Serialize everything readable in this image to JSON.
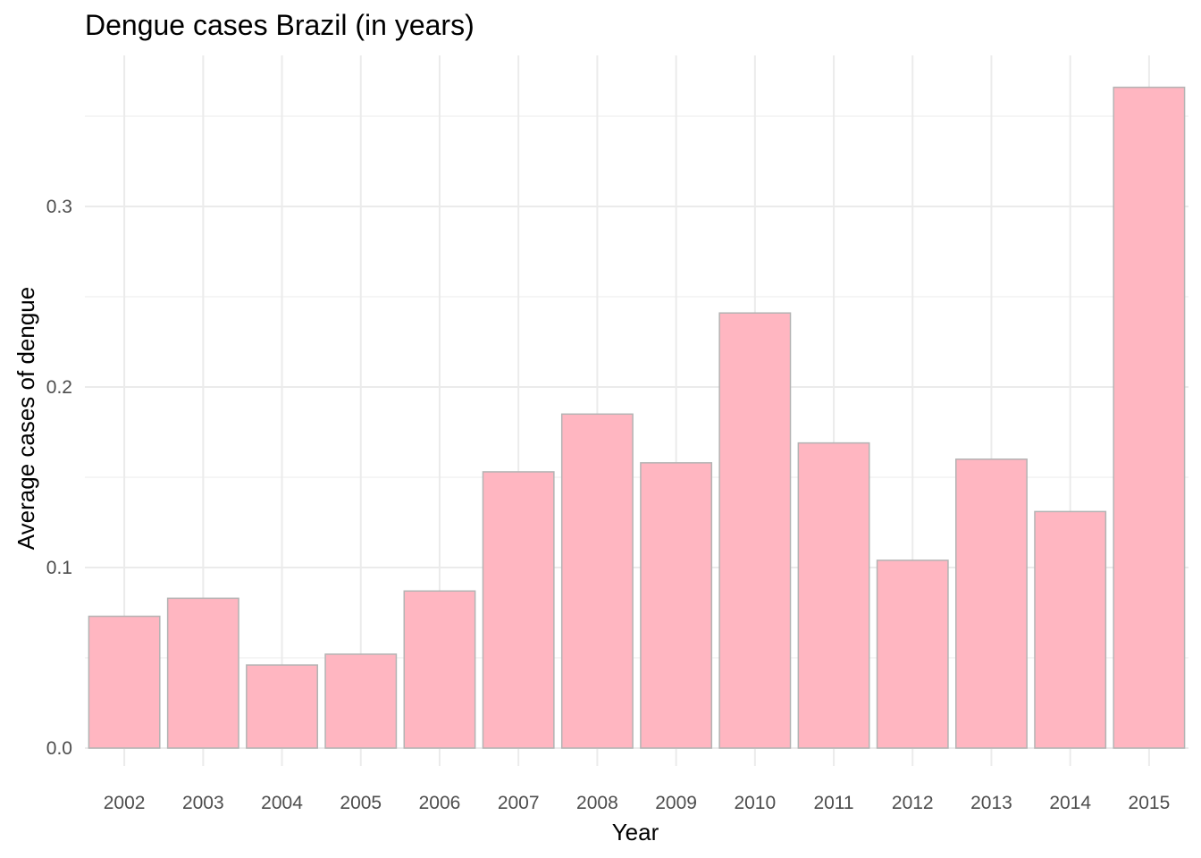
{
  "chart_data": {
    "type": "bar",
    "title": "Dengue cases Brazil (in years)",
    "xlabel": "Year",
    "ylabel": "Average cases of dengue",
    "categories": [
      "2002",
      "2003",
      "2004",
      "2005",
      "2006",
      "2007",
      "2008",
      "2009",
      "2010",
      "2011",
      "2012",
      "2013",
      "2014",
      "2015"
    ],
    "values": [
      0.073,
      0.083,
      0.046,
      0.052,
      0.087,
      0.153,
      0.185,
      0.158,
      0.241,
      0.169,
      0.104,
      0.16,
      0.131,
      0.366
    ],
    "ylim": [
      0,
      0.38
    ],
    "yticks": [
      0.0,
      0.1,
      0.2,
      0.3
    ],
    "ytick_labels": [
      "0.0",
      "0.1",
      "0.2",
      "0.3"
    ],
    "grid": true,
    "legend": "none",
    "colors": {
      "bar_fill": "#ffb6c1",
      "bar_stroke": "#b3b3b3",
      "grid": "#ebebeb"
    }
  }
}
